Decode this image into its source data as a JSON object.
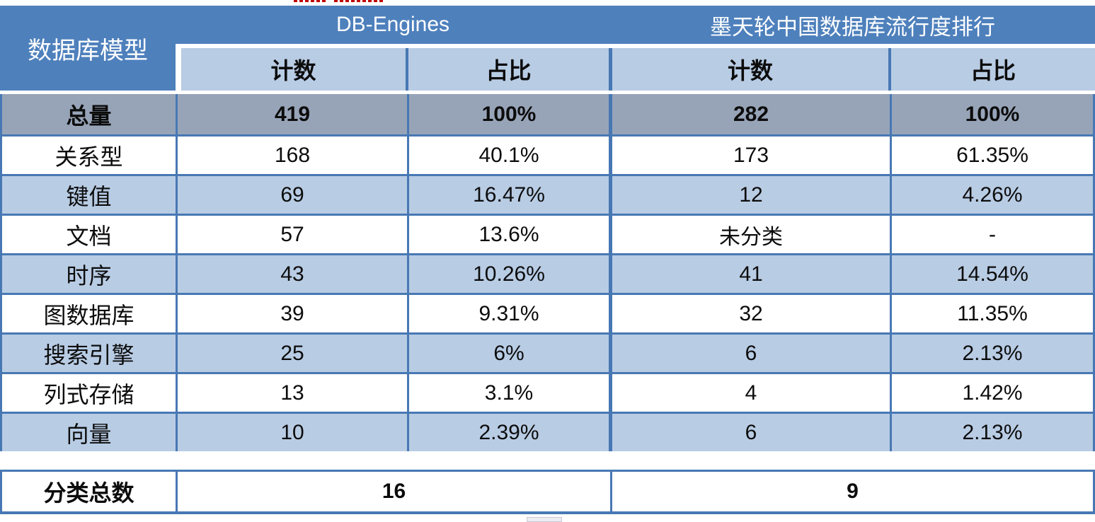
{
  "chart_data": {
    "type": "table",
    "column_groups": [
      "数据库模型",
      "DB-Engines",
      "墨天轮中国数据库流行度排行"
    ],
    "columns": [
      "数据库模型",
      "计数",
      "占比",
      "计数",
      "占比"
    ],
    "rows": [
      [
        "总量",
        "419",
        "100%",
        "282",
        "100%"
      ],
      [
        "关系型",
        "168",
        "40.1%",
        "173",
        "61.35%"
      ],
      [
        "键值",
        "69",
        "16.47%",
        "12",
        "4.26%"
      ],
      [
        "文档",
        "57",
        "13.6%",
        "未分类",
        "-"
      ],
      [
        "时序",
        "43",
        "10.26%",
        "41",
        "14.54%"
      ],
      [
        "图数据库",
        "39",
        "9.31%",
        "32",
        "11.35%"
      ],
      [
        "搜索引擎",
        "25",
        "6%",
        "6",
        "2.13%"
      ],
      [
        "列式存储",
        "13",
        "3.1%",
        "4",
        "1.42%"
      ],
      [
        "向量",
        "10",
        "2.39%",
        "6",
        "2.13%"
      ],
      [
        "分类总数",
        "16",
        "",
        "9",
        ""
      ]
    ]
  },
  "table": {
    "model_header": "数据库模型",
    "sources": [
      {
        "label": "DB-Engines"
      },
      {
        "label": "墨天轮中国数据库流行度排行"
      }
    ],
    "subheaders": [
      "计数",
      "占比",
      "计数",
      "占比"
    ],
    "rows": [
      {
        "label": "总量",
        "values": [
          "419",
          "100%",
          "282",
          "100%"
        ],
        "style": "total"
      },
      {
        "label": "关系型",
        "values": [
          "168",
          "40.1%",
          "173",
          "61.35%"
        ],
        "style": "white"
      },
      {
        "label": "键值",
        "values": [
          "69",
          "16.47%",
          "12",
          "4.26%"
        ],
        "style": "blue"
      },
      {
        "label": "文档",
        "values": [
          "57",
          "13.6%",
          "未分类",
          "-"
        ],
        "style": "white"
      },
      {
        "label": "时序",
        "values": [
          "43",
          "10.26%",
          "41",
          "14.54%"
        ],
        "style": "blue"
      },
      {
        "label": "图数据库",
        "values": [
          "39",
          "9.31%",
          "32",
          "11.35%"
        ],
        "style": "white"
      },
      {
        "label": "搜索引擎",
        "values": [
          "25",
          "6%",
          "6",
          "2.13%"
        ],
        "style": "blue"
      },
      {
        "label": "列式存储",
        "values": [
          "13",
          "3.1%",
          "4",
          "1.42%"
        ],
        "style": "white"
      },
      {
        "label": "向量",
        "values": [
          "10",
          "2.39%",
          "6",
          "2.13%"
        ],
        "style": "blue"
      }
    ],
    "footer": {
      "label": "分类总数",
      "values": [
        "16",
        "9"
      ]
    }
  },
  "colors": {
    "header_blue": "#4e80bc",
    "light_blue": "#b8cce4",
    "total_gray": "#97a4b8",
    "grid_line": "#4878b4",
    "underline_red": "#c00000"
  }
}
